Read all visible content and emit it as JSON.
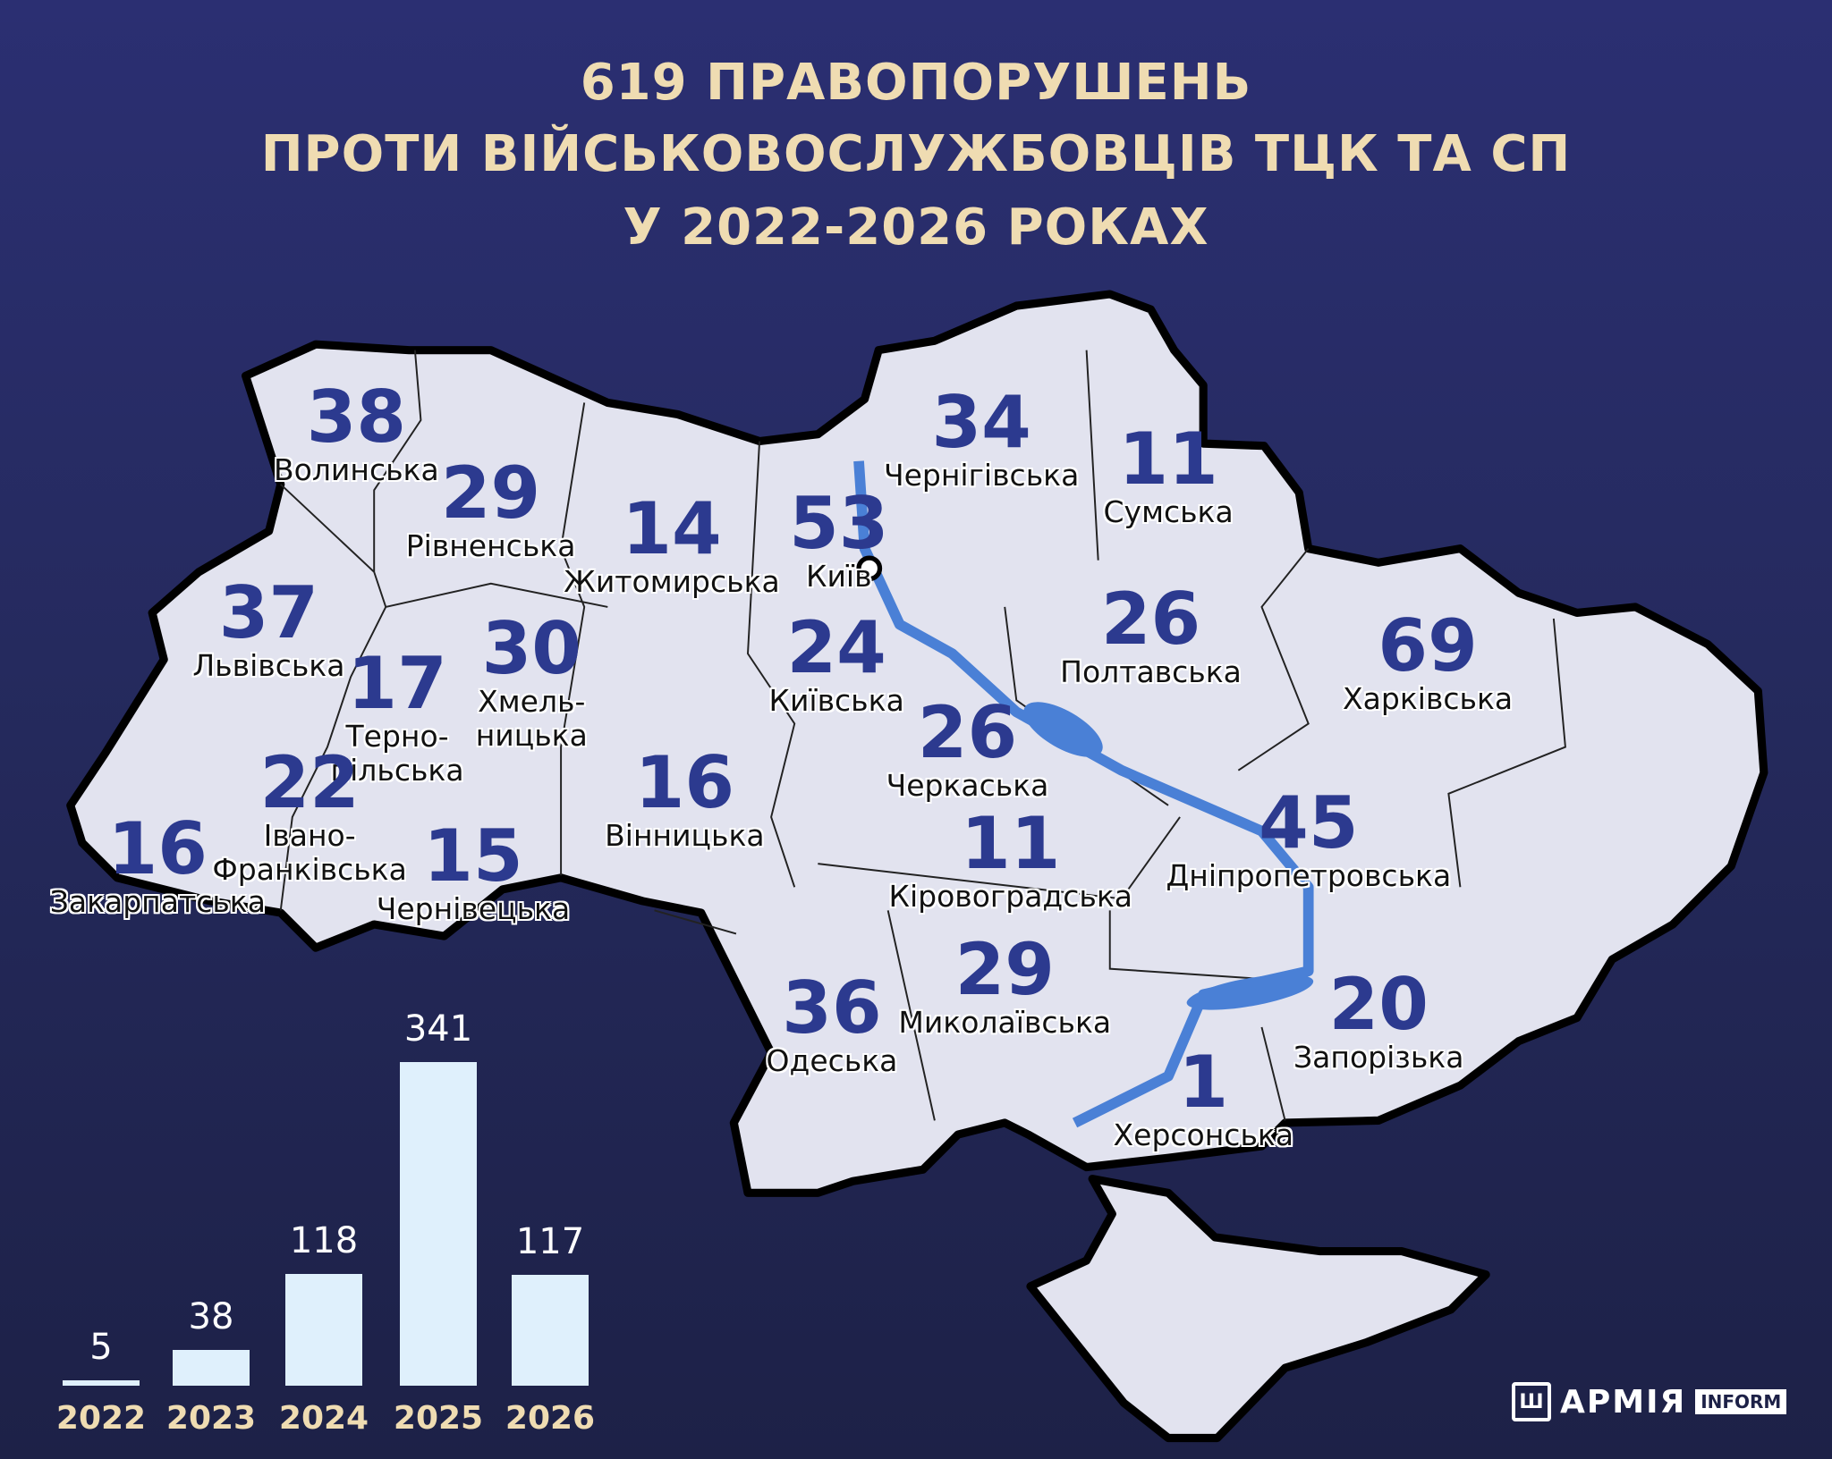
{
  "title": {
    "line1": "619 ПРАВОПОРУШЕНЬ",
    "line2": "ПРОТИ ВІЙСЬКОВОСЛУЖБОВЦІВ ТЦК ТА СП",
    "line3": "У 2022-2026 РОКАХ"
  },
  "colors": {
    "number": "#2c3a8f",
    "map_fill": "#e2e3ef",
    "river": "#4a80d6",
    "title": "#efdcb2",
    "bar": "#dff0fc"
  },
  "regions": [
    {
      "name": "Волинська",
      "value": "38"
    },
    {
      "name": "Рівненська",
      "value": "29"
    },
    {
      "name": "Житомирська",
      "value": "14"
    },
    {
      "name": "Київ",
      "value": "53"
    },
    {
      "name": "Чернігівська",
      "value": "34"
    },
    {
      "name": "Сумська",
      "value": "11"
    },
    {
      "name": "Львівська",
      "value": "37"
    },
    {
      "name": "Терно-\nпільська",
      "value": "17"
    },
    {
      "name": "Хмель-\nницька",
      "value": "30"
    },
    {
      "name": "Київська",
      "value": "24"
    },
    {
      "name": "Полтавська",
      "value": "26"
    },
    {
      "name": "Харківська",
      "value": "69"
    },
    {
      "name": "Черкаська",
      "value": "26"
    },
    {
      "name": "Івано-\nФранківська",
      "value": "22"
    },
    {
      "name": "Закарпатська",
      "value": "16"
    },
    {
      "name": "Чернівецька",
      "value": "15"
    },
    {
      "name": "Вінницька",
      "value": "16"
    },
    {
      "name": "Кіровоградська",
      "value": "11"
    },
    {
      "name": "Дніпропетровська",
      "value": "45"
    },
    {
      "name": "Миколаївська",
      "value": "29"
    },
    {
      "name": "Одеська",
      "value": "36"
    },
    {
      "name": "Запорізька",
      "value": "20"
    },
    {
      "name": "Херсонська",
      "value": "1"
    }
  ],
  "chart_data": {
    "type": "bar",
    "categories": [
      "2022",
      "2023",
      "2024",
      "2025",
      "2026"
    ],
    "values": [
      5,
      38,
      118,
      341,
      117
    ],
    "title": "",
    "xlabel": "",
    "ylabel": "",
    "data_labels": [
      "5",
      "38",
      "118",
      "341",
      "117"
    ],
    "grid": false
  },
  "logo": {
    "army": "АРМІЯ",
    "inform": "INFORM",
    "mark": "Ш"
  }
}
